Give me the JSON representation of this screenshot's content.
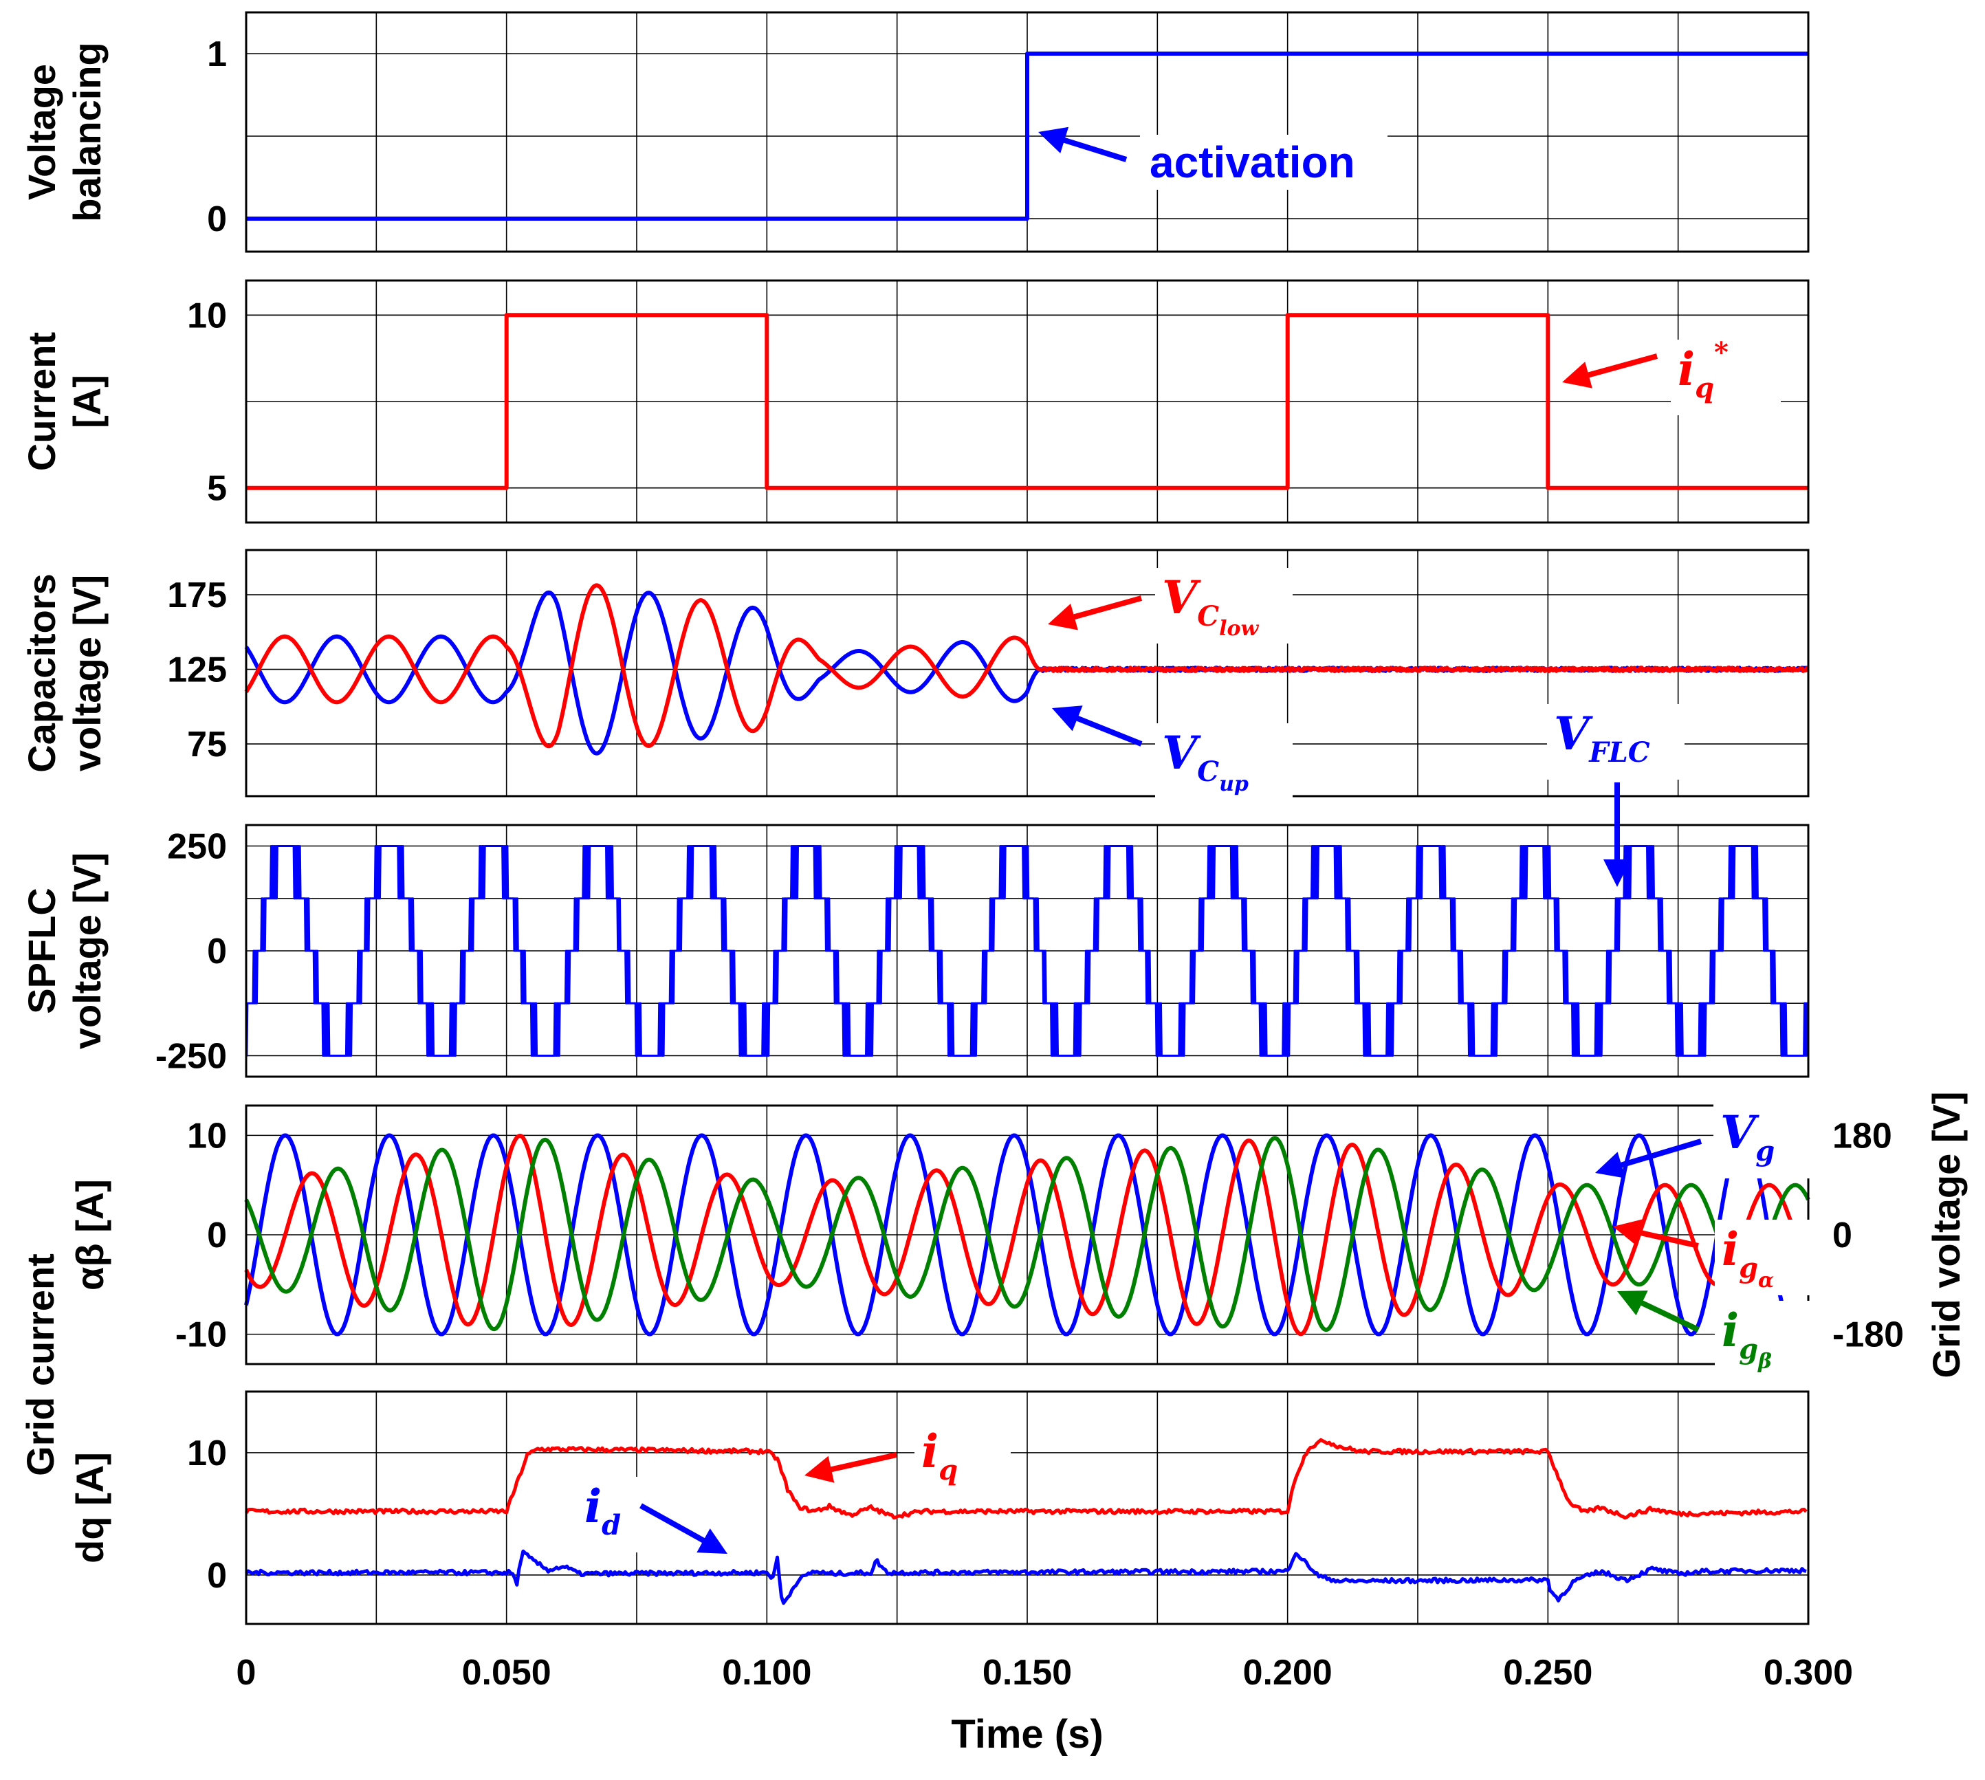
{
  "chart_data": [
    {
      "type": "line",
      "panel": "voltage-balancing",
      "ylabel_lines": [
        "Voltage",
        "balancing"
      ],
      "yticks": [
        "0",
        "1"
      ],
      "ylim": [
        -0.2,
        1.25
      ],
      "xlim": [
        0,
        0.3
      ],
      "grid": true,
      "series": [
        {
          "color": "#0000ff",
          "x": [
            0,
            0.15,
            0.15,
            0.3
          ],
          "y": [
            0,
            0,
            1,
            1
          ]
        }
      ],
      "annotations": [
        {
          "text": "activation",
          "color": "#0000ff"
        }
      ]
    },
    {
      "type": "line",
      "panel": "current-reference",
      "ylabel_lines": [
        "Current",
        "[A]"
      ],
      "yticks": [
        "5",
        "10"
      ],
      "ylim": [
        4,
        11
      ],
      "xlim": [
        0,
        0.3
      ],
      "grid": true,
      "series": [
        {
          "color": "#ff0000",
          "x": [
            0,
            0.05,
            0.05,
            0.1,
            0.1,
            0.2,
            0.2,
            0.25,
            0.25,
            0.3
          ],
          "y": [
            5,
            5,
            10,
            10,
            5,
            5,
            10,
            10,
            5,
            5
          ]
        }
      ],
      "annotations": [
        {
          "text": "i",
          "sub": "q",
          "sup": "*",
          "color": "#ff0000"
        }
      ]
    },
    {
      "type": "line",
      "panel": "capacitors-voltage",
      "ylabel_lines": [
        "Capacitors",
        "voltage [V]"
      ],
      "yticks": [
        "75",
        "125",
        "175"
      ],
      "ylim": [
        40,
        205
      ],
      "xlim": [
        0,
        0.3
      ],
      "grid": true,
      "model": "VC = 125 ± A(t)·sin(2π·50·(t−0.0024)); envelope A (V) at times t (s); balanced to 125 V after t = 0.153 s",
      "envelope_t": [
        0,
        0.05,
        0.06,
        0.08,
        0.1,
        0.11,
        0.15,
        0.153
      ],
      "envelope_a": [
        22,
        22,
        60,
        50,
        40,
        10,
        22,
        0
      ],
      "series": [
        {
          "color": "#0000ff",
          "sign": -1
        },
        {
          "color": "#ff0000",
          "sign": 1
        }
      ],
      "annotations": [
        {
          "text": "V",
          "sub": "C",
          "subsub": "low",
          "color": "#ff0000"
        },
        {
          "text": "V",
          "sub": "C",
          "subsub": "up",
          "color": "#0000ff"
        }
      ]
    },
    {
      "type": "line",
      "panel": "spflc-voltage",
      "ylabel_lines": [
        "SPFLC",
        "voltage [V]"
      ],
      "yticks": [
        "-250",
        "0",
        "250"
      ],
      "ylim": [
        -300,
        300
      ],
      "xlim": [
        0,
        0.3
      ],
      "grid": true,
      "model": "five-level staircase (−250, −125, 0, 125, 250 V) following 250·sin(2π·50·(t−0.0025)), with switching ripple between adjacent levels",
      "series": [
        {
          "color": "#0000ff",
          "amplitude": 250,
          "levels": 5,
          "frequency_hz": 50
        }
      ],
      "annotations": [
        {
          "text": "V",
          "sub": "FLC",
          "color": "#0000ff"
        }
      ]
    },
    {
      "type": "line",
      "panel": "grid-current-alpha-beta",
      "ylabel_lines": [
        "Grid current",
        "αβ [A]"
      ],
      "yticks": [
        "-10",
        "0",
        "10"
      ],
      "ylim": [
        -13,
        13
      ],
      "xlim": [
        0,
        0.3
      ],
      "grid": true,
      "y2label": "Grid voltage [V]",
      "y2ticks": [
        "-180",
        "0",
        "180"
      ],
      "model": "50 Hz sinusoids; current amplitude steps with the iq* reference",
      "series": [
        {
          "name": "Vg",
          "color": "#0000ff",
          "amplitude": 10,
          "phase_deg": 0
        },
        {
          "name": "igα",
          "color": "#ff0000",
          "amplitude_steps_t": [
            0,
            0.053,
            0.103,
            0.203,
            0.253
          ],
          "amplitude_steps_a": [
            5,
            10,
            5,
            10,
            5
          ],
          "phase_deg": -90
        },
        {
          "name": "igβ",
          "color": "#008000",
          "amplitude_steps_t": [
            0,
            0.053,
            0.103,
            0.203,
            0.253
          ],
          "amplitude_steps_a": [
            5,
            10,
            5,
            10,
            5
          ],
          "phase_deg": 180
        }
      ],
      "annotations": [
        {
          "text": "V",
          "sub": "g",
          "color": "#0000ff"
        },
        {
          "text": "i",
          "sub": "g",
          "subsub": "α",
          "color": "#ff0000"
        },
        {
          "text": "i",
          "sub": "g",
          "subsub": "β",
          "color": "#008000"
        }
      ]
    },
    {
      "type": "line",
      "panel": "grid-current-dq",
      "ylabel_lines": [
        "Grid current",
        "dq [A]"
      ],
      "yticks": [
        "0",
        "10"
      ],
      "ylim": [
        -4,
        15
      ],
      "xlim": [
        0,
        0.3
      ],
      "xlabel": "Time (s)",
      "xticks": [
        "0",
        "0.050",
        "0.100",
        "0.150",
        "0.200",
        "0.250",
        "0.300"
      ],
      "grid": true,
      "series": [
        {
          "name": "iq",
          "color": "#ff0000",
          "x": [
            0,
            0.05,
            0.052,
            0.054,
            0.056,
            0.1,
            0.102,
            0.104,
            0.106,
            0.109,
            0.112,
            0.116,
            0.12,
            0.124,
            0.13,
            0.2,
            0.2015,
            0.204,
            0.207,
            0.21,
            0.214,
            0.25,
            0.252,
            0.254,
            0.257,
            0.26,
            0.265,
            0.27,
            0.275,
            0.3
          ],
          "y": [
            5.2,
            5.2,
            7.5,
            9.8,
            10.3,
            10.1,
            9.5,
            7.0,
            5.6,
            5.2,
            5.6,
            4.9,
            5.5,
            4.8,
            5.2,
            5.2,
            8.0,
            10.4,
            11.0,
            10.5,
            10.1,
            10.1,
            8.0,
            6.0,
            5.1,
            5.5,
            4.8,
            5.4,
            5.0,
            5.2
          ]
        },
        {
          "name": "id",
          "color": "#0000ff",
          "x": [
            0,
            0.051,
            0.052,
            0.053,
            0.055,
            0.058,
            0.061,
            0.064,
            0.1,
            0.101,
            0.102,
            0.103,
            0.104,
            0.106,
            0.109,
            0.112,
            0.12,
            0.121,
            0.123,
            0.2,
            0.2015,
            0.203,
            0.206,
            0.21,
            0.25,
            0.2505,
            0.252,
            0.255,
            0.26,
            0.265,
            0.27,
            0.275,
            0.28,
            0.3
          ],
          "y": [
            0.2,
            0.2,
            -0.7,
            1.9,
            1.2,
            0.4,
            0.7,
            0.1,
            0.2,
            -0.3,
            1.3,
            -2.5,
            -1.8,
            -0.4,
            0.3,
            0.1,
            0.2,
            1.2,
            0.2,
            0.3,
            1.9,
            1.2,
            -0.1,
            -0.5,
            -0.4,
            -1.3,
            -2.0,
            -0.5,
            0.3,
            -0.4,
            0.5,
            0.1,
            0.3,
            0.4
          ]
        }
      ],
      "annotations": [
        {
          "text": "i",
          "sub": "q",
          "color": "#ff0000"
        },
        {
          "text": "i",
          "sub": "d",
          "color": "#0000ff"
        }
      ]
    }
  ]
}
